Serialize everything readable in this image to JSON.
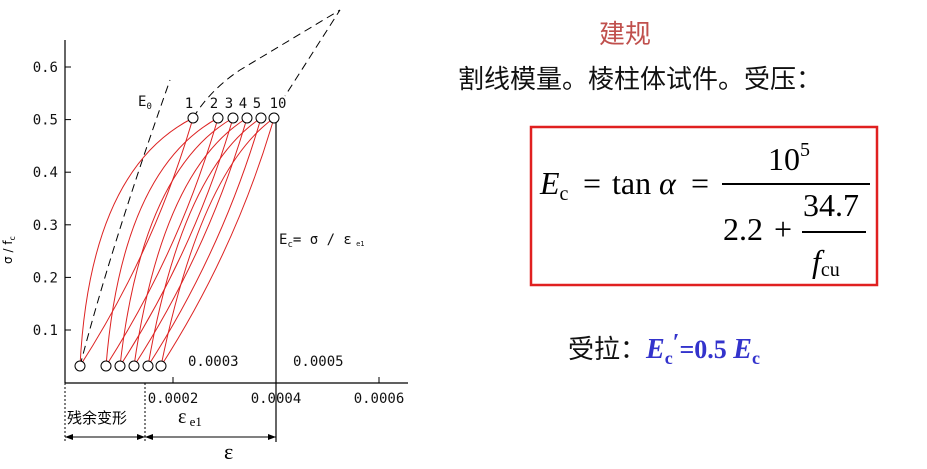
{
  "slide": {
    "title": "建规",
    "subtitle": "割线模量。棱柱体试件。受压：",
    "formula": {
      "E": "E",
      "E_sub": "c",
      "eq1": "=",
      "tan": "tan",
      "alpha": "α",
      "eq2": "=",
      "num_base": "10",
      "num_exp": "5",
      "den_a": "2.2",
      "plus": "+",
      "den_num": "34.7",
      "den_f": "f",
      "den_f_sub": "cu"
    },
    "tension": {
      "label": "受拉：",
      "E": "E",
      "E_sub": "c",
      "prime": "′",
      "middle": "=0.5 ",
      "E2": "E",
      "E2_sub": "c"
    }
  },
  "diagram": {
    "y_label": "σ / f",
    "y_label_sub": "c",
    "y_ticks": [
      "0.1",
      "0.2",
      "0.3",
      "0.4",
      "0.5",
      "0.6"
    ],
    "x_ticks": [
      "0.0002",
      "0.0004",
      "0.0006"
    ],
    "curve_labels": [
      "1",
      "2",
      "3",
      "4",
      "5",
      "10"
    ],
    "e0": "E",
    "e0_sub": "0",
    "ec": "E",
    "ec_sub": "c",
    "ec_rest": "= σ / ε",
    "ec_rest_sub": " e1",
    "strain_a": "0.0003",
    "strain_b": "0.0005",
    "residual": "残余变形",
    "elastic": "ε",
    "elastic_sub": " e1",
    "total": "ε"
  }
}
